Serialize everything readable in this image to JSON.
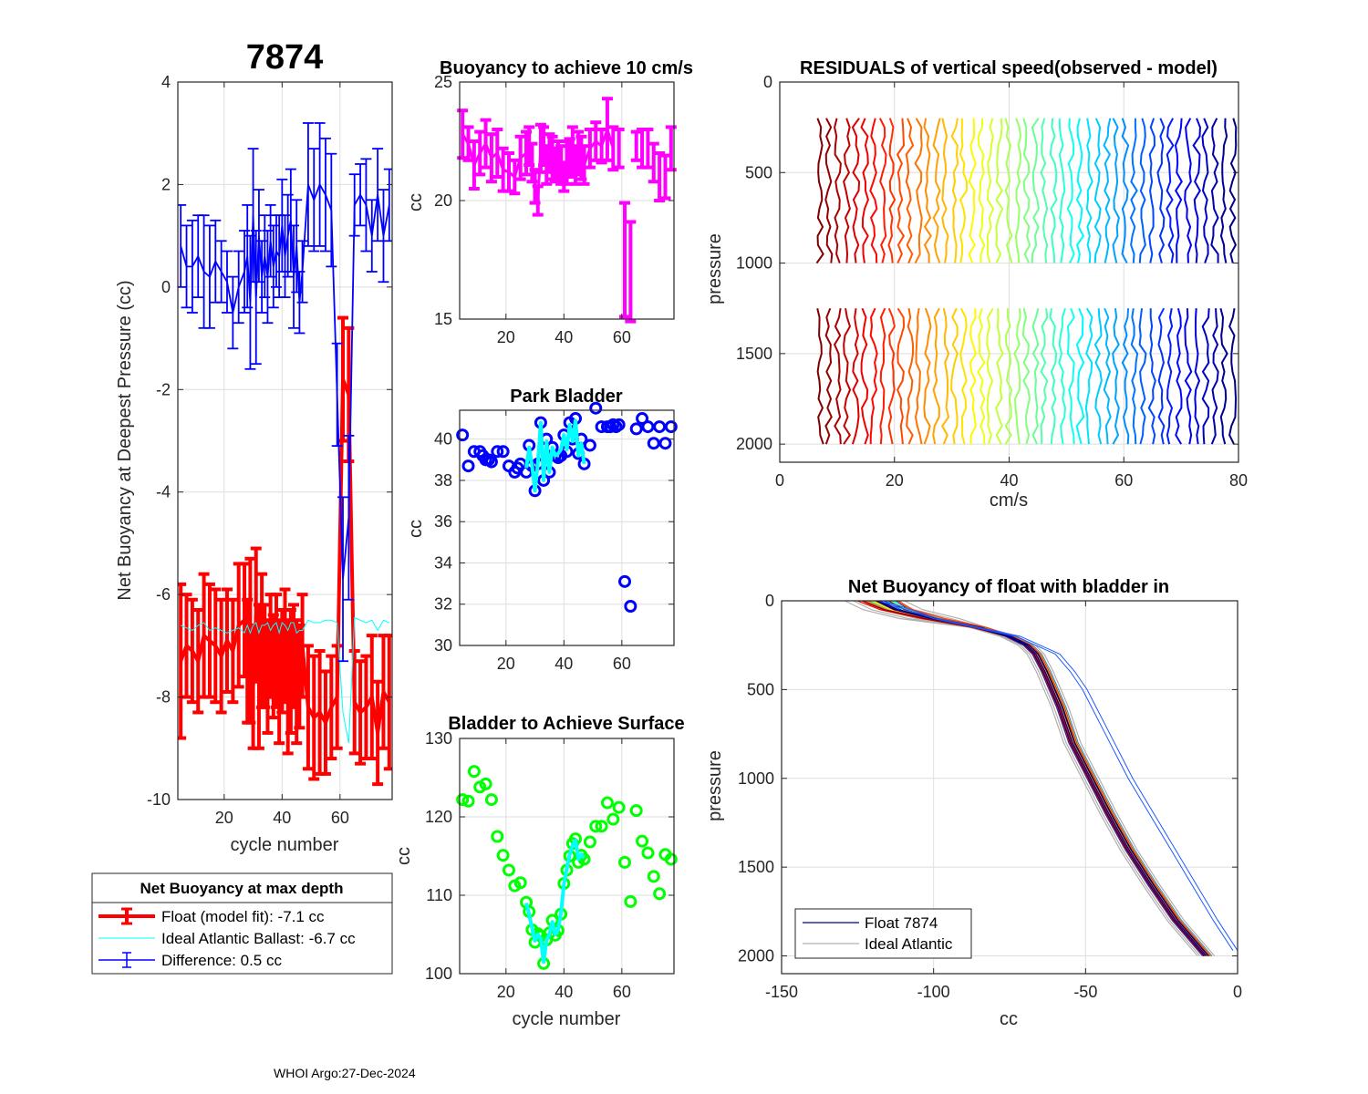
{
  "figure": {
    "float_id": "7874",
    "footer": "WHOI Argo:27-Dec-2024"
  },
  "chart_data": [
    {
      "id": "net_buoyancy_deepest",
      "type": "line",
      "title": "7874",
      "xlabel": "cycle number",
      "ylabel": "Net Buoyancy at Deepest Pressure (cc)",
      "xlim": [
        4,
        78
      ],
      "ylim": [
        -10,
        4
      ],
      "xticks": [
        20,
        40,
        60
      ],
      "yticks": [
        -10,
        -8,
        -6,
        -4,
        -2,
        0,
        2,
        4
      ],
      "grid": true,
      "legend": {
        "title": "Net Buoyancy at max depth",
        "placement": "below",
        "entries": [
          {
            "label": "Float (model fit):  -7.1 cc",
            "color": "#ff0000",
            "style": "errorbar-thick"
          },
          {
            "label": "Ideal Atlantic Ballast:  -6.7 cc",
            "color": "#00ffff",
            "style": "line-thin"
          },
          {
            "label": "Difference:   0.5 cc",
            "color": "#0000ff",
            "style": "errorbar"
          }
        ]
      },
      "x": [
        5,
        7,
        9,
        11,
        13,
        15,
        17,
        19,
        21,
        23,
        25,
        27,
        28,
        29,
        30,
        31,
        32,
        33,
        34,
        35,
        36,
        37,
        38,
        39,
        40,
        41,
        42,
        43,
        44,
        45,
        46,
        47,
        49,
        51,
        53,
        55,
        57,
        59,
        61,
        63,
        65,
        67,
        69,
        71,
        73,
        75,
        77
      ],
      "series": [
        {
          "name": "Float (model fit)",
          "color": "#ff0000",
          "values": [
            -7.3,
            -7.0,
            -7.1,
            -7.3,
            -6.8,
            -6.9,
            -7.0,
            -7.2,
            -6.9,
            -7.1,
            -6.6,
            -6.5,
            -7.3,
            -6.9,
            -7.8,
            -6.4,
            -7.6,
            -6.9,
            -7.2,
            -7.6,
            -7.0,
            -7.4,
            -7.1,
            -7.7,
            -7.3,
            -7.0,
            -7.8,
            -7.5,
            -7.2,
            -7.7,
            -7.6,
            -7.0,
            -8.2,
            -8.4,
            -8.3,
            -8.5,
            -8.2,
            -8.0,
            -1.8,
            -2.1,
            -8.1,
            -8.3,
            -8.2,
            -8.0,
            -8.7,
            -7.9,
            -8.1
          ],
          "err": [
            1.5,
            1.0,
            1.0,
            1.0,
            1.2,
            1.1,
            1.1,
            1.1,
            1.0,
            1.0,
            1.2,
            1.1,
            1.2,
            1.6,
            1.2,
            1.3,
            1.4,
            1.3,
            1.0,
            1.1,
            1.0,
            1.0,
            1.1,
            1.2,
            1.0,
            1.1,
            1.3,
            1.2,
            1.0,
            1.2,
            1.0,
            1.0,
            1.2,
            1.2,
            1.2,
            1.0,
            1.0,
            1.0,
            1.2,
            1.3,
            1.0,
            1.0,
            1.0,
            1.2,
            1.0,
            1.1,
            1.3
          ]
        },
        {
          "name": "Ideal Atlantic Ballast",
          "color": "#00ffff",
          "values": [
            -6.6,
            -6.65,
            -6.7,
            -6.6,
            -6.55,
            -6.7,
            -6.65,
            -6.7,
            -6.75,
            -6.7,
            -6.65,
            -6.75,
            -6.6,
            -6.75,
            -6.6,
            -6.55,
            -6.75,
            -6.6,
            -6.6,
            -6.55,
            -6.7,
            -6.6,
            -6.55,
            -6.75,
            -6.55,
            -6.6,
            -6.7,
            -6.55,
            -6.55,
            -6.75,
            -6.7,
            -6.7,
            -6.5,
            -6.55,
            -6.55,
            -6.5,
            -6.5,
            -6.55,
            -8.3,
            -8.9,
            -6.45,
            -6.5,
            -6.55,
            -6.5,
            -6.7,
            -6.5,
            -6.55
          ],
          "err": []
        },
        {
          "name": "Difference",
          "color": "#0000ff",
          "values": [
            0.8,
            0.4,
            0.4,
            0.6,
            0.3,
            0.2,
            0.5,
            0.3,
            0.1,
            -0.5,
            0.0,
            0.3,
            0.6,
            -0.3,
            1.4,
            -0.2,
            1.0,
            0.2,
            0.6,
            0.2,
            0.9,
            0.4,
            0.7,
            0.6,
            1.2,
            0.6,
            1.0,
            1.3,
            0.2,
            0.8,
            -0.3,
            0.3,
            2.0,
            1.7,
            2.0,
            1.8,
            1.5,
            -2.1,
            -5.7,
            -4.5,
            1.6,
            1.8,
            1.6,
            1.0,
            1.8,
            1.0,
            1.6
          ],
          "err": [
            0.8,
            0.8,
            0.9,
            0.8,
            1.1,
            1.0,
            0.8,
            0.6,
            0.6,
            0.7,
            0.7,
            0.8,
            1.0,
            1.3,
            1.3,
            1.3,
            0.9,
            0.7,
            0.8,
            0.9,
            0.7,
            0.8,
            0.7,
            0.8,
            0.9,
            0.8,
            0.8,
            1.0,
            1.0,
            0.9,
            0.6,
            0.6,
            1.2,
            1.0,
            1.2,
            1.1,
            1.1,
            1.0,
            1.6,
            1.6,
            0.6,
            0.6,
            0.9,
            0.7,
            0.9,
            0.9,
            0.7
          ]
        }
      ]
    },
    {
      "id": "buoyancy_10cms",
      "type": "line",
      "title": "Buoyancy to achieve 10 cm/s",
      "xlabel": "",
      "ylabel": "cc",
      "xlim": [
        4,
        78
      ],
      "ylim": [
        15,
        25
      ],
      "xticks": [
        20,
        40,
        60
      ],
      "yticks": [
        15,
        20,
        25
      ],
      "grid": true,
      "x": [
        5,
        7,
        9,
        11,
        13,
        15,
        17,
        19,
        21,
        23,
        25,
        27,
        28,
        29,
        30,
        31,
        32,
        33,
        34,
        35,
        36,
        37,
        38,
        39,
        40,
        41,
        42,
        43,
        44,
        45,
        46,
        47,
        49,
        51,
        53,
        55,
        57,
        59,
        61,
        63,
        65,
        67,
        69,
        71,
        73,
        75,
        77
      ],
      "series": [
        {
          "name": "Buoyancy",
          "color": "#ff00ff",
          "values": [
            22.8,
            22.4,
            21.5,
            22.0,
            22.4,
            21.8,
            22.0,
            21.3,
            21.2,
            21.0,
            21.8,
            22.0,
            22.3,
            21.6,
            20.6,
            20.0,
            22.2,
            22.3,
            21.5,
            22.0,
            21.8,
            21.5,
            21.7,
            21.5,
            21.0,
            21.6,
            21.8,
            22.1,
            21.5,
            22.0,
            21.8,
            21.5,
            22.2,
            22.5,
            22.3,
            23.0,
            22.2,
            22.2,
            17.5,
            17.0,
            22.3,
            22.2,
            22.2,
            21.6,
            21.0,
            21.0,
            22.2
          ],
          "err": [
            1.0,
            0.7,
            1.0,
            0.9,
            1.0,
            1.0,
            1.0,
            0.9,
            0.8,
            0.7,
            0.9,
            0.9,
            0.8,
            0.8,
            0.7,
            0.6,
            1.0,
            0.8,
            0.8,
            0.8,
            0.9,
            0.7,
            0.8,
            0.8,
            0.6,
            0.9,
            0.8,
            1.0,
            0.8,
            0.9,
            0.9,
            0.8,
            0.8,
            0.8,
            0.7,
            1.3,
            0.9,
            0.8,
            2.4,
            2.1,
            0.6,
            0.8,
            0.8,
            0.8,
            1.0,
            0.9,
            0.9
          ]
        }
      ]
    },
    {
      "id": "park_bladder",
      "type": "scatter",
      "title": "Park Bladder",
      "xlabel": "",
      "ylabel": "cc",
      "xlim": [
        4,
        78
      ],
      "ylim": [
        30,
        41.4
      ],
      "xticks": [
        20,
        40,
        60
      ],
      "yticks": [
        30,
        32,
        34,
        36,
        38,
        40
      ],
      "grid": true,
      "series": [
        {
          "name": "Park Bladder",
          "color": "#0000ff",
          "marker": "circle",
          "x": [
            5,
            7,
            9,
            11,
            12,
            13,
            14,
            15,
            17,
            19,
            21,
            23,
            24,
            25,
            27,
            28,
            29,
            30,
            31,
            32,
            33,
            34,
            35,
            36,
            37,
            38,
            39,
            40,
            41,
            42,
            43,
            44,
            45,
            46,
            47,
            49,
            51,
            53,
            55,
            56,
            57,
            58,
            59,
            61,
            63,
            65,
            67,
            69,
            71,
            73,
            75,
            77
          ],
          "y": [
            40.2,
            38.7,
            39.4,
            39.4,
            39.2,
            39.0,
            39.0,
            38.9,
            39.4,
            39.4,
            38.7,
            38.4,
            38.6,
            38.8,
            38.4,
            39.7,
            38.7,
            37.5,
            38.8,
            40.8,
            38.0,
            40.0,
            38.4,
            39.6,
            39.2,
            39.1,
            39.2,
            40.2,
            39.4,
            40.8,
            40.0,
            41.0,
            39.3,
            40.0,
            38.8,
            39.7,
            41.5,
            40.6,
            40.6,
            40.6,
            40.7,
            40.6,
            40.7,
            33.1,
            31.9,
            40.5,
            41.0,
            40.6,
            39.8,
            40.6,
            39.8,
            40.6
          ]
        },
        {
          "name": "Park Bladder (fit)",
          "color": "#00ffff",
          "marker": "line",
          "x": [
            27,
            28,
            29,
            30,
            31,
            32,
            33,
            34,
            35,
            36,
            37,
            38,
            39,
            40,
            41,
            42,
            43,
            44,
            45,
            46,
            47
          ],
          "y": [
            38.6,
            39.6,
            38.7,
            37.5,
            38.8,
            40.8,
            38.0,
            39.9,
            38.4,
            39.6,
            39.2,
            39.3,
            39.5,
            40.2,
            39.5,
            40.7,
            39.9,
            40.9,
            39.2,
            39.8,
            38.8
          ]
        }
      ]
    },
    {
      "id": "bladder_surface",
      "type": "scatter",
      "title": "Bladder to Achieve Surface",
      "xlabel": "cycle number",
      "ylabel": "cc",
      "xlim": [
        4,
        78
      ],
      "ylim": [
        100,
        130
      ],
      "xticks": [
        20,
        40,
        60
      ],
      "yticks": [
        100,
        110,
        120,
        130
      ],
      "grid": true,
      "series": [
        {
          "name": "Bladder to Achieve Surface",
          "color": "#00ff00",
          "marker": "circle",
          "x": [
            5,
            7,
            9,
            11,
            13,
            15,
            17,
            19,
            21,
            23,
            25,
            27,
            28,
            29,
            30,
            31,
            32,
            33,
            34,
            35,
            36,
            37,
            38,
            39,
            40,
            41,
            42,
            43,
            44,
            45,
            46,
            47,
            49,
            51,
            53,
            55,
            57,
            59,
            61,
            63,
            65,
            67,
            69,
            71,
            73,
            75,
            77
          ],
          "y": [
            122.2,
            122.0,
            125.8,
            123.8,
            124.2,
            122.2,
            117.5,
            115.1,
            113.2,
            111.2,
            111.6,
            109.1,
            107.9,
            105.6,
            104.0,
            105.1,
            104.8,
            101.3,
            104.3,
            105.2,
            106.8,
            104.9,
            105.5,
            107.6,
            111.5,
            113.2,
            115.0,
            116.6,
            117.2,
            114.2,
            115.1,
            114.6,
            116.8,
            118.8,
            118.8,
            121.8,
            119.7,
            121.2,
            114.2,
            109.2,
            120.8,
            116.9,
            115.4,
            112.4,
            110.2,
            115.2,
            114.6
          ]
        },
        {
          "name": "Bladder to Achieve Surface (fit)",
          "color": "#00ffff",
          "marker": "line",
          "x": [
            27,
            28,
            29,
            30,
            31,
            32,
            33,
            34,
            35,
            36,
            37,
            38,
            39,
            40,
            41,
            42,
            43,
            44,
            45,
            46,
            47
          ],
          "y": [
            109.0,
            107.5,
            105.8,
            104.2,
            105.0,
            104.5,
            101.5,
            104.3,
            105.0,
            106.6,
            105.0,
            105.6,
            107.8,
            111.4,
            113.4,
            115.2,
            116.4,
            117.0,
            114.6,
            115.2,
            114.8
          ]
        }
      ]
    },
    {
      "id": "residuals_vertical_speed",
      "type": "line",
      "title": "RESIDUALS of vertical speed(observed - model)",
      "xlabel": "cm/s",
      "ylabel": "pressure",
      "xlim": [
        0,
        80
      ],
      "ylim": [
        2100,
        0
      ],
      "xticks": [
        0,
        20,
        40,
        60,
        80
      ],
      "yticks": [
        0,
        500,
        1000,
        1500,
        2000
      ],
      "grid": true,
      "colormap": "jet",
      "profile_count": 47,
      "profile_offset_start_cms": 7,
      "profile_offset_end_cms": 79,
      "segments": [
        {
          "pressure_range": [
            200,
            1000
          ]
        },
        {
          "pressure_range": [
            1250,
            2000
          ]
        }
      ],
      "residual_amplitude_cms": 0.6
    },
    {
      "id": "net_buoyancy_profile",
      "type": "line",
      "title": "Net Buoyancy of float with bladder in",
      "xlabel": "cc",
      "ylabel": "pressure",
      "xlim": [
        -150,
        0
      ],
      "ylim": [
        2100,
        0
      ],
      "xticks": [
        -150,
        -100,
        -50,
        0
      ],
      "yticks": [
        0,
        500,
        1000,
        1500,
        2000
      ],
      "grid": true,
      "colormap": "jet",
      "legend": {
        "placement": "bottom-left",
        "entries": [
          {
            "label": "Float 7874",
            "color": "#00008b"
          },
          {
            "label": "Ideal Atlantic",
            "color": "#b0b0b0"
          }
        ]
      },
      "typical_profile": {
        "pressure": [
          0,
          50,
          100,
          150,
          200,
          250,
          300,
          400,
          500,
          600,
          700,
          800,
          900,
          1000,
          1200,
          1400,
          1600,
          1800,
          2000
        ],
        "cc": [
          -118,
          -112,
          -100,
          -85,
          -75,
          -69,
          -66,
          -63,
          -60.5,
          -58,
          -56,
          -54,
          -51,
          -48,
          -42,
          -35.5,
          -28,
          -20,
          -10
        ]
      },
      "outlier_profile": {
        "pressure": [
          0,
          100,
          200,
          300,
          400,
          500,
          600,
          700,
          800,
          900,
          1000,
          1200,
          1400,
          1600,
          1800,
          1970
        ],
        "cc": [
          -118,
          -100,
          -73,
          -60,
          -55,
          -51,
          -48,
          -45,
          -42,
          -39,
          -36,
          -29,
          -22,
          -15,
          -8,
          -1.5
        ]
      },
      "profile_count": 46
    }
  ]
}
